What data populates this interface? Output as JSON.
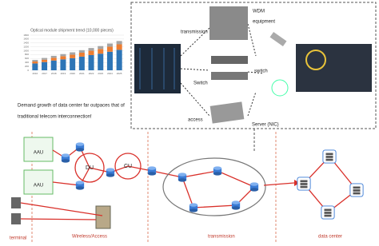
{
  "inset_chart": {
    "type": "bar",
    "title": "Optical module shipment trend (10,000 pieces)",
    "categories": [
      "2016",
      "2017",
      "2018",
      "2019",
      "2020",
      "2021",
      "2022",
      "2023",
      "2024",
      "2025"
    ],
    "series": [
      {
        "color": "#2e75b6",
        "values": [
          350,
          420,
          500,
          560,
          620,
          700,
          780,
          850,
          950,
          1050
        ]
      },
      {
        "color": "#ed7d31",
        "values": [
          100,
          120,
          140,
          160,
          180,
          200,
          220,
          240,
          260,
          280
        ]
      },
      {
        "color": "#a5a5a5",
        "values": [
          80,
          90,
          100,
          110,
          120,
          130,
          140,
          150,
          160,
          170
        ]
      }
    ],
    "ylim": [
      0,
      1800
    ],
    "yticks": [
      0,
      200,
      400,
      600,
      800,
      1000,
      1200,
      1400,
      1600,
      1800
    ],
    "stacked": true,
    "grid": true
  },
  "caption": [
    "Demand growth of data center far outpaces that of",
    "traditional telecom interconnection!"
  ],
  "equipment": {
    "transmission": "transmission",
    "wdm": [
      "WDM",
      "equipment"
    ],
    "switch_left": "Switch",
    "switch_right": "switch",
    "access": "access",
    "server": "Server (NIC)"
  },
  "network": {
    "aau": [
      "AAU",
      "AAU"
    ],
    "du": "DU",
    "cu": "CU",
    "sections": [
      "terminal",
      "Wireless/Access",
      "transmission",
      "data center"
    ]
  }
}
